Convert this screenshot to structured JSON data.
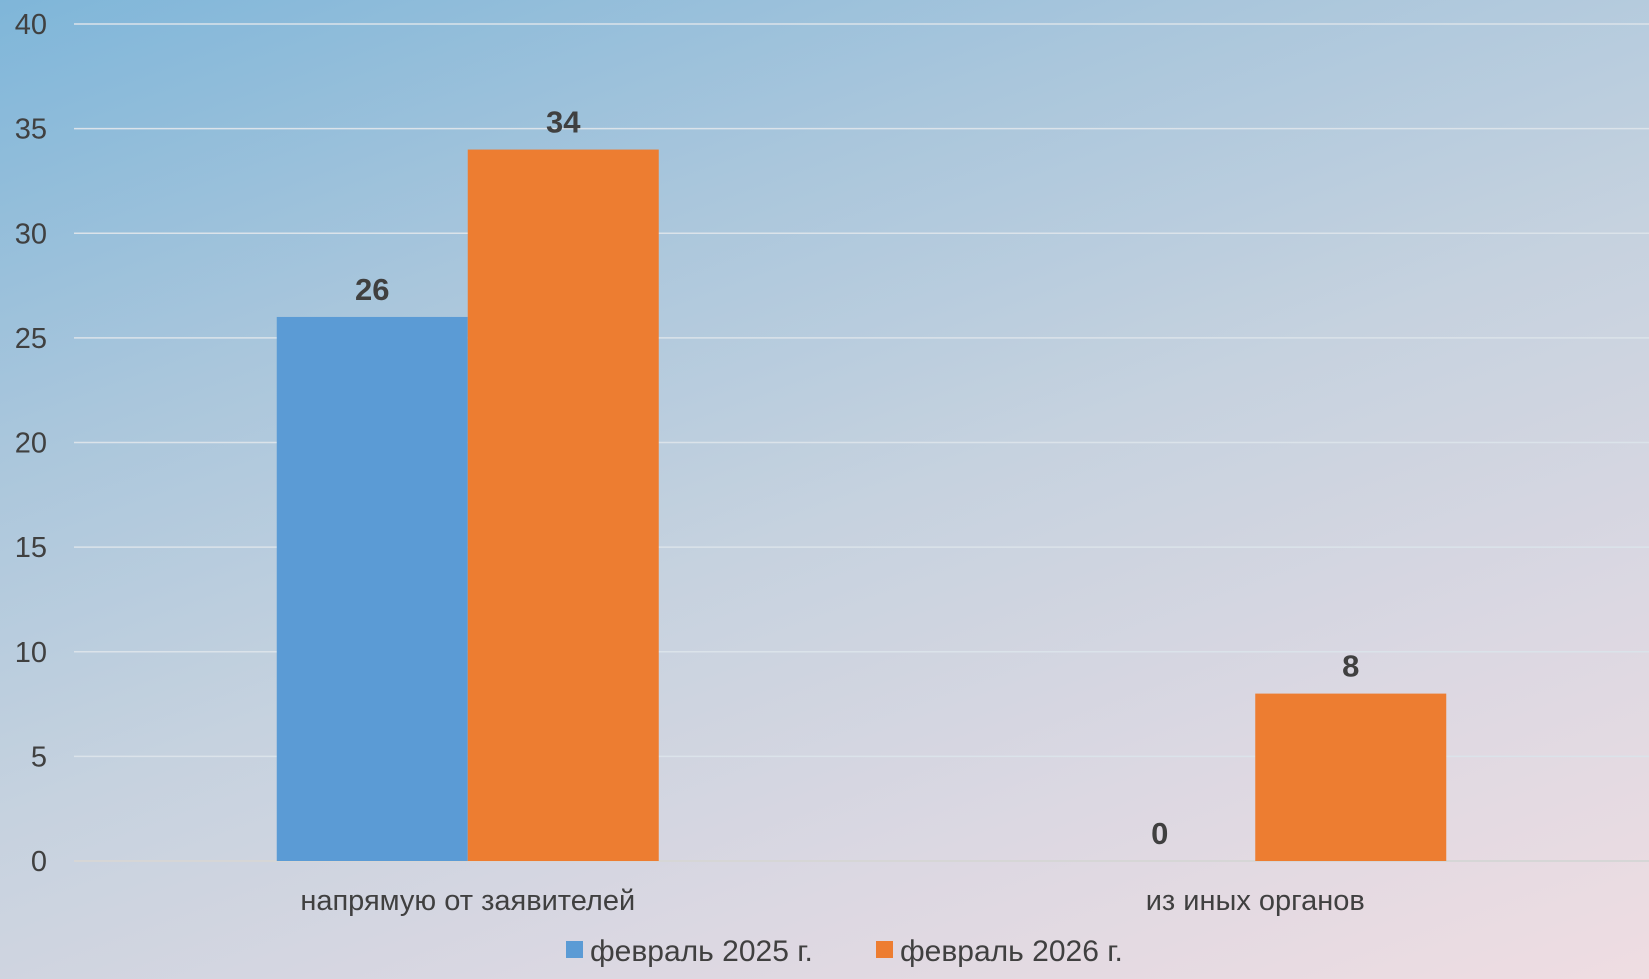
{
  "chart_data": {
    "type": "bar",
    "categories": [
      "напрямую от заявителей",
      "из иных органов"
    ],
    "series": [
      {
        "name": "февраль 2025 г.",
        "values": [
          26,
          0
        ],
        "color": "#5b9bd5"
      },
      {
        "name": "февраль 2026 г.",
        "values": [
          34,
          8
        ],
        "color": "#ed7d31"
      }
    ],
    "ylim": [
      0,
      40
    ],
    "yticks": [
      0,
      5,
      10,
      15,
      20,
      25,
      30,
      35,
      40
    ],
    "grid": true,
    "data_labels": true,
    "legend_position": "bottom"
  }
}
